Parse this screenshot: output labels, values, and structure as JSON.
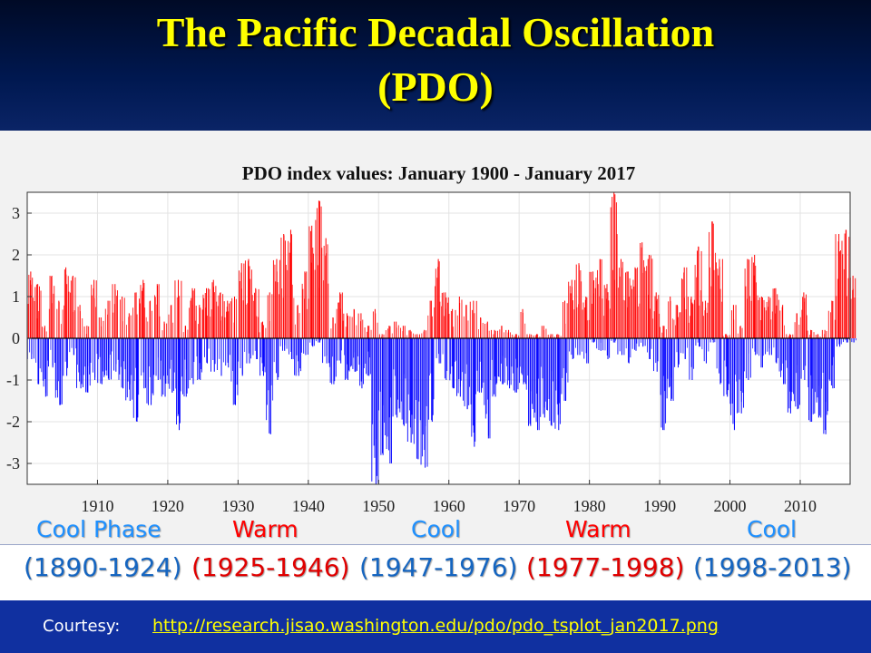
{
  "slide": {
    "title_line1": "The Pacific Decadal Oscillation",
    "title_line2": "(PDO)"
  },
  "phases": [
    {
      "name": "Cool Phase",
      "years": "(1890-1924)",
      "kind": "cool"
    },
    {
      "name": "Warm",
      "years": "(1925-1946)",
      "kind": "warm"
    },
    {
      "name": "Cool",
      "years": "(1947-1976)",
      "kind": "cool"
    },
    {
      "name": "Warm",
      "years": "(1977-1998)",
      "kind": "warm"
    },
    {
      "name": "Cool",
      "years": "(1998-2013)",
      "kind": "cool"
    }
  ],
  "colors": {
    "cool": "#1e90ff",
    "warm": "#ff0000",
    "years_cool": "#1565c0",
    "years_warm": "#e00000",
    "positive_bars": "#ff0000",
    "negative_bars": "#0000ff"
  },
  "footer": {
    "label": "Courtesy:",
    "link": "http://research.jisao.washington.edu/pdo/pdo_tsplot_jan2017.png"
  },
  "chart_data": {
    "type": "bar",
    "title": "PDO index values: January 1900 - January 2017",
    "xlabel": "",
    "ylabel": "",
    "xlim": [
      1900,
      2017.1
    ],
    "ylim": [
      -3.5,
      3.5
    ],
    "x_ticks": [
      "1910",
      "1920",
      "1930",
      "1940",
      "1950",
      "1960",
      "1970",
      "1980",
      "1990",
      "2000",
      "2010"
    ],
    "y_ticks": [
      "-3",
      "-2",
      "-1",
      "0",
      "1",
      "2",
      "3"
    ],
    "grid": true,
    "series": [
      {
        "x": [
          1900,
          1901,
          1902,
          1903,
          1904,
          1905,
          1906,
          1907,
          1908,
          1909,
          1910,
          1911,
          1912,
          1913,
          1914,
          1915,
          1916,
          1917,
          1918,
          1919,
          1920,
          1921,
          1922,
          1923,
          1924,
          1925,
          1926,
          1927,
          1928,
          1929,
          1930,
          1931,
          1932,
          1933,
          1934,
          1935,
          1936,
          1937,
          1938,
          1939,
          1940,
          1941,
          1942,
          1943,
          1944,
          1945,
          1946,
          1947,
          1948,
          1949,
          1950,
          1951,
          1952,
          1953,
          1954,
          1955,
          1956,
          1957,
          1958,
          1959,
          1960,
          1961,
          1962,
          1963,
          1964,
          1965,
          1966,
          1967,
          1968,
          1969,
          1970,
          1971,
          1972,
          1973,
          1974,
          1975,
          1976,
          1977,
          1978,
          1979,
          1980,
          1981,
          1982,
          1983,
          1984,
          1985,
          1986,
          1987,
          1988,
          1989,
          1990,
          1991,
          1992,
          1993,
          1994,
          1995,
          1996,
          1997,
          1998,
          1999,
          2000,
          2001,
          2002,
          2003,
          2004,
          2005,
          2006,
          2007,
          2008,
          2009,
          2010,
          2011,
          2012,
          2013,
          2014,
          2015,
          2016,
          2017
        ],
        "max": [
          1.6,
          1.3,
          0.3,
          1.5,
          0.9,
          1.7,
          1.5,
          0.8,
          0.3,
          1.4,
          0.5,
          0.9,
          1.3,
          1.0,
          0.6,
          1.1,
          1.4,
          0.9,
          1.3,
          0.4,
          0.8,
          1.4,
          0.3,
          1.2,
          0.8,
          1.2,
          1.4,
          1.1,
          0.9,
          1.0,
          1.8,
          1.9,
          1.2,
          0.4,
          1.1,
          1.9,
          2.5,
          2.6,
          0.8,
          1.6,
          2.7,
          3.3,
          2.4,
          0.5,
          1.1,
          0.6,
          0.7,
          0.6,
          0.3,
          0.7,
          0.1,
          0.3,
          0.4,
          0.3,
          0.2,
          0.1,
          0.2,
          0.9,
          1.9,
          1.1,
          0.7,
          1.0,
          0.8,
          0.9,
          0.5,
          0.4,
          0.2,
          0.3,
          0.2,
          0.1,
          0.7,
          0.1,
          0.1,
          0.3,
          0.1,
          0.1,
          0.9,
          1.4,
          1.8,
          1.0,
          1.6,
          1.9,
          1.3,
          3.5,
          1.9,
          1.6,
          1.7,
          2.3,
          2.0,
          1.1,
          0.3,
          1.0,
          0.8,
          1.7,
          1.0,
          2.2,
          0.9,
          2.8,
          1.9,
          0.1,
          0.8,
          0.3,
          1.9,
          2.0,
          1.0,
          1.0,
          1.2,
          0.8,
          0.1,
          0.6,
          1.1,
          0.2,
          0.1,
          0.2,
          0.9,
          2.5,
          2.6,
          1.5
        ],
        "min": [
          -0.5,
          -1.1,
          -1.4,
          -0.7,
          -1.6,
          -0.9,
          -0.4,
          -1.2,
          -1.3,
          -1.0,
          -1.1,
          -1.0,
          -0.8,
          -1.2,
          -1.5,
          -2.0,
          -1.2,
          -1.6,
          -1.0,
          -1.4,
          -1.3,
          -2.2,
          -1.4,
          -1.1,
          -1.0,
          -0.6,
          -0.8,
          -0.9,
          -0.7,
          -1.6,
          -0.9,
          -0.6,
          -0.5,
          -0.9,
          -2.3,
          -1.0,
          -0.3,
          -0.5,
          -0.9,
          -0.4,
          -0.2,
          -0.1,
          -0.6,
          -1.1,
          -0.6,
          -1.0,
          -0.8,
          -1.2,
          -0.9,
          -3.5,
          -2.8,
          -3.0,
          -1.9,
          -2.1,
          -2.5,
          -2.9,
          -3.1,
          -2.0,
          -0.6,
          -1.0,
          -1.2,
          -1.4,
          -1.7,
          -2.6,
          -1.3,
          -2.4,
          -1.4,
          -1.1,
          -1.2,
          -1.3,
          -1.1,
          -2.1,
          -2.2,
          -1.9,
          -2.1,
          -2.2,
          -1.5,
          -0.5,
          -0.4,
          -0.6,
          -0.1,
          -0.3,
          -0.5,
          -0.1,
          -0.4,
          -0.6,
          -0.3,
          -0.2,
          -0.5,
          -0.8,
          -2.2,
          -1.5,
          -0.7,
          -0.5,
          -1.0,
          -0.2,
          -0.6,
          -0.1,
          -1.1,
          -1.4,
          -2.2,
          -1.8,
          -1.0,
          -0.4,
          -0.7,
          -0.4,
          -0.6,
          -1.1,
          -1.8,
          -1.7,
          -1.0,
          -2.0,
          -1.9,
          -2.3,
          -1.2,
          -0.2,
          -0.1,
          -0.1
        ]
      }
    ]
  }
}
